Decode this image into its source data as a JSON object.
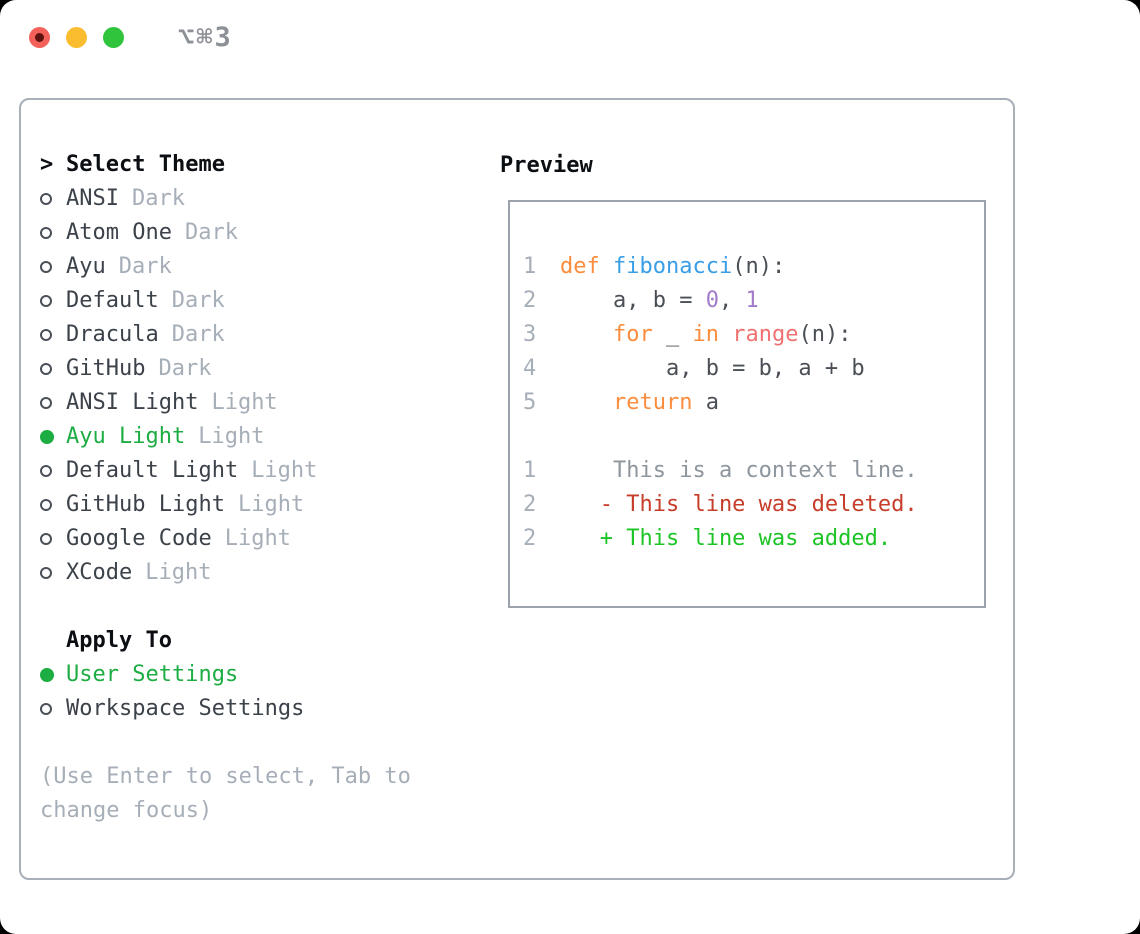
{
  "window": {
    "title": "⌥⌘3"
  },
  "colors": {
    "accent_green": "#1dad43",
    "traffic_red": "#f4605a",
    "traffic_yellow": "#f9bd2f",
    "traffic_green": "#2fc43c"
  },
  "theme_list": {
    "header": "Select Theme",
    "items": [
      {
        "name": "ANSI",
        "variant": "Dark",
        "selected": false
      },
      {
        "name": "Atom One",
        "variant": "Dark",
        "selected": false
      },
      {
        "name": "Ayu",
        "variant": "Dark",
        "selected": false
      },
      {
        "name": "Default",
        "variant": "Dark",
        "selected": false
      },
      {
        "name": "Dracula",
        "variant": "Dark",
        "selected": false
      },
      {
        "name": "GitHub",
        "variant": "Dark",
        "selected": false
      },
      {
        "name": "ANSI Light",
        "variant": "Light",
        "selected": false
      },
      {
        "name": "Ayu Light",
        "variant": "Light",
        "selected": true
      },
      {
        "name": "Default Light",
        "variant": "Light",
        "selected": false
      },
      {
        "name": "GitHub Light",
        "variant": "Light",
        "selected": false
      },
      {
        "name": "Google Code",
        "variant": "Light",
        "selected": false
      },
      {
        "name": "XCode",
        "variant": "Light",
        "selected": false
      }
    ]
  },
  "apply_to": {
    "header": "Apply To",
    "items": [
      {
        "label": "User Settings",
        "selected": true
      },
      {
        "label": "Workspace Settings",
        "selected": false
      }
    ]
  },
  "hint": "(Use Enter to select, Tab to change focus)",
  "preview": {
    "label": "Preview",
    "palette": {
      "kw": "#fa8d3e",
      "fn": "#399ee6",
      "num": "#a37acc",
      "builtin": "#f07171",
      "txt": "#4a4f56",
      "ctx": "#8d959d",
      "del": "#c63d2a",
      "add": "#1dc426"
    },
    "lines": [
      {
        "n": "1",
        "tokens": [
          {
            "t": "def",
            "c": "kw"
          },
          {
            "t": " ",
            "c": "txt"
          },
          {
            "t": "fibonacci",
            "c": "fn"
          },
          {
            "t": "(n):",
            "c": "txt"
          }
        ]
      },
      {
        "n": "2",
        "tokens": [
          {
            "t": "    a, b = ",
            "c": "txt"
          },
          {
            "t": "0",
            "c": "num"
          },
          {
            "t": ", ",
            "c": "txt"
          },
          {
            "t": "1",
            "c": "num"
          }
        ]
      },
      {
        "n": "3",
        "tokens": [
          {
            "t": "    ",
            "c": "txt"
          },
          {
            "t": "for",
            "c": "kw"
          },
          {
            "t": " _ ",
            "c": "txt"
          },
          {
            "t": "in",
            "c": "kw"
          },
          {
            "t": " ",
            "c": "txt"
          },
          {
            "t": "range",
            "c": "builtin"
          },
          {
            "t": "(n):",
            "c": "txt"
          }
        ]
      },
      {
        "n": "4",
        "tokens": [
          {
            "t": "        a, b = b, a + b",
            "c": "txt"
          }
        ]
      },
      {
        "n": "5",
        "tokens": [
          {
            "t": "    ",
            "c": "txt"
          },
          {
            "t": "return",
            "c": "kw"
          },
          {
            "t": " a",
            "c": "txt"
          }
        ]
      },
      {
        "n": "",
        "tokens": []
      },
      {
        "n": "1",
        "tokens": [
          {
            "t": "    This is a context line.",
            "c": "ctx"
          }
        ]
      },
      {
        "n": "2",
        "tokens": [
          {
            "t": "   - This line was deleted.",
            "c": "del"
          }
        ]
      },
      {
        "n": "2",
        "tokens": [
          {
            "t": "   + This line was added.",
            "c": "add"
          }
        ]
      }
    ]
  }
}
